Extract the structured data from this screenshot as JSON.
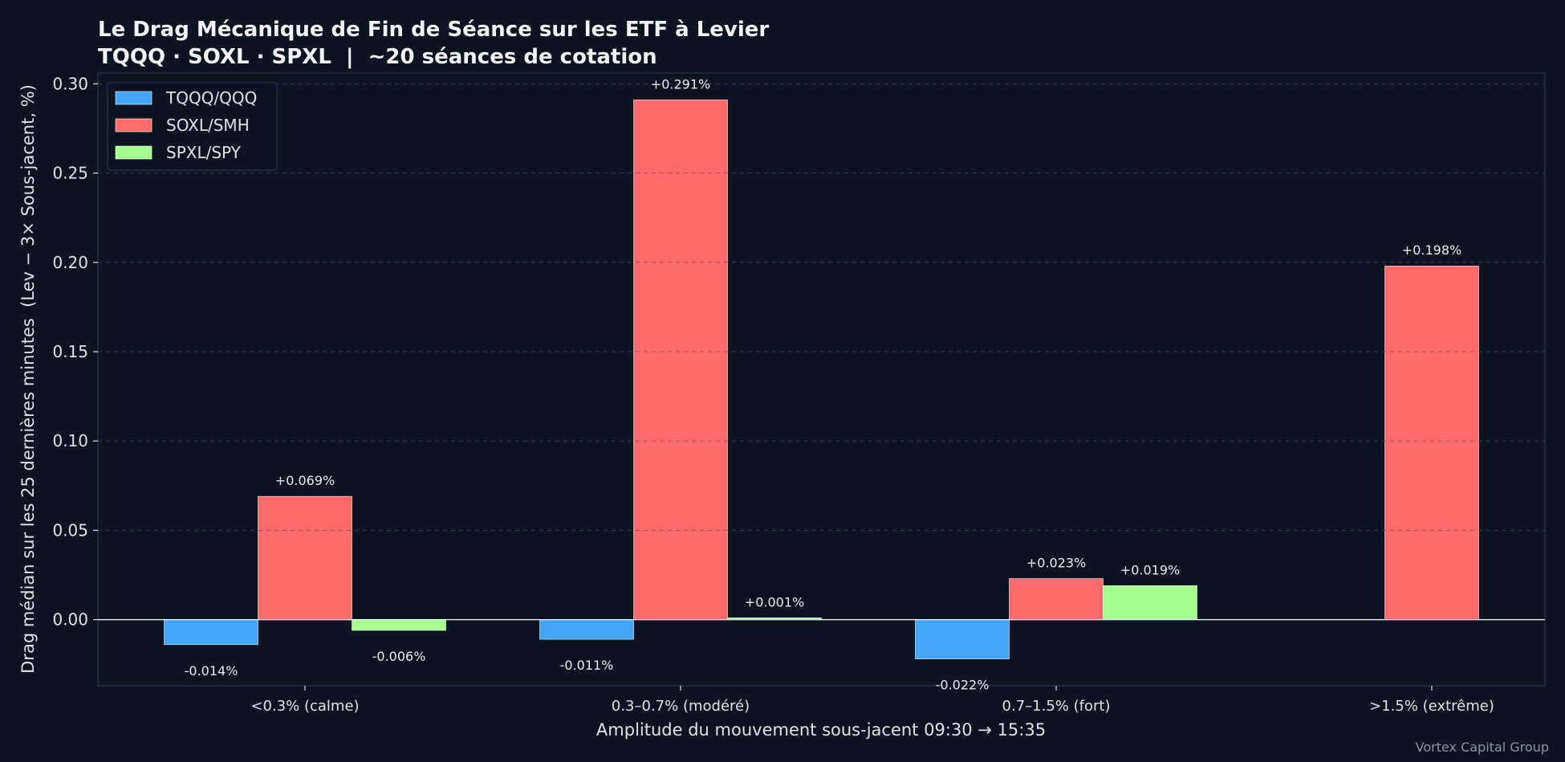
{
  "chart_data": {
    "type": "bar",
    "title": "Le Drag Mécanique de Fin de Séance sur les ETF à Levier",
    "subtitle": "TQQQ · SOXL · SPXL  |  ~20 séances de cotation",
    "xlabel": "Amplitude du mouvement sous-jacent 09:30 → 15:35",
    "ylabel": "Drag médian sur les 25 dernières minutes  (Lev − 3× Sous-jacent, %)",
    "categories": [
      "<0.3% (calme)",
      "0.3–0.7% (modéré)",
      "0.7–1.5% (fort)",
      ">1.5% (extrême)"
    ],
    "series": [
      {
        "name": "TQQQ/QQQ",
        "color": "#42a5f5",
        "values": [
          -0.014,
          -0.011,
          -0.022,
          null
        ],
        "labels": [
          "-0.014%",
          "-0.011%",
          "-0.022%",
          null
        ]
      },
      {
        "name": "SOXL/SMH",
        "color": "#ff6b6b",
        "values": [
          0.069,
          0.291,
          0.023,
          0.198
        ],
        "labels": [
          "+0.069%",
          "+0.291%",
          "+0.023%",
          "+0.198%"
        ]
      },
      {
        "name": "SPXL/SPY",
        "color": "#a5ff8c",
        "values": [
          -0.006,
          0.001,
          0.019,
          null
        ],
        "labels": [
          "-0.006%",
          "+0.001%",
          "+0.019%",
          null
        ]
      }
    ],
    "ylim": [
      -0.037,
      0.306
    ],
    "yticks": [
      0.0,
      0.05,
      0.1,
      0.15,
      0.2,
      0.25,
      0.3
    ],
    "ytick_labels": [
      "0.00",
      "0.05",
      "0.10",
      "0.15",
      "0.20",
      "0.25",
      "0.30"
    ],
    "grid": "horizontal dashed",
    "legend_position": "top-left",
    "footer": "Vortex Capital Group"
  }
}
